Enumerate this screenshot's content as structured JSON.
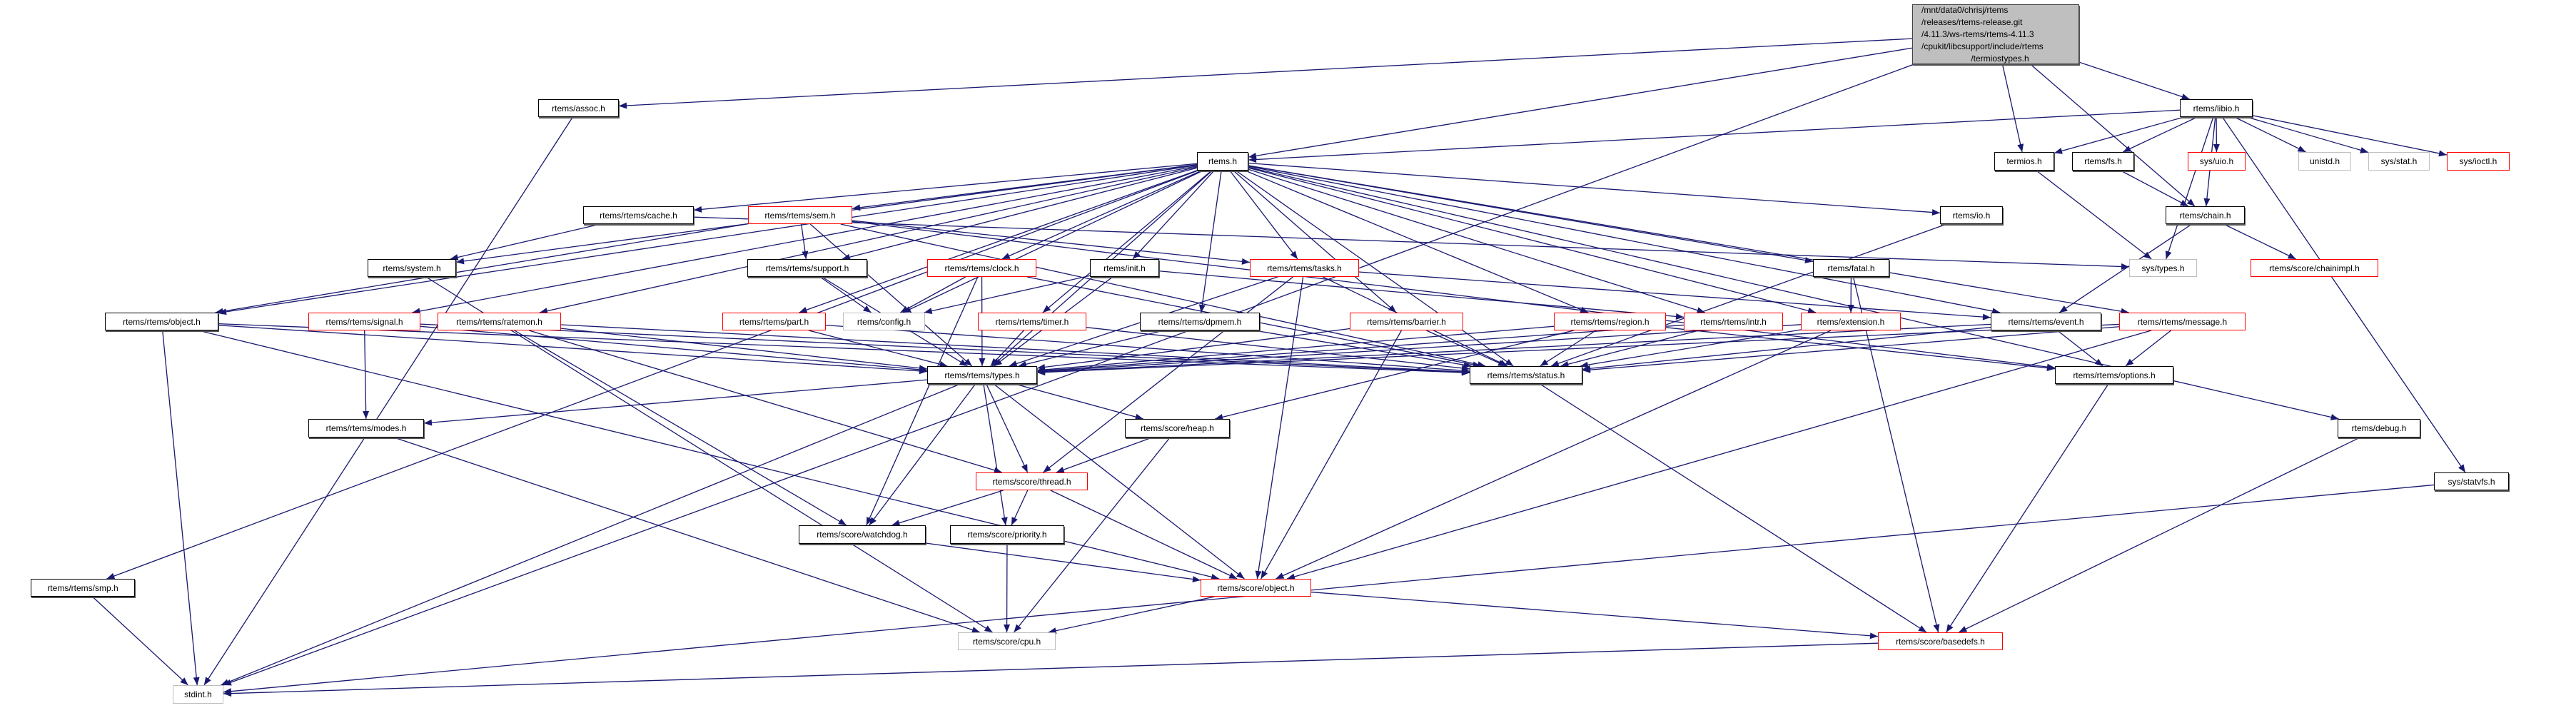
{
  "graph": {
    "edge_color": "#191970",
    "border_colors": {
      "normal": "#000000",
      "truncated": "#ff0000",
      "external": "#bfbfbf",
      "main_fill": "#bfbfbf"
    },
    "main": {
      "id": "main",
      "label_lines": [
        "/mnt/data0/chrisj/rtems",
        "/releases/rtems-release.git",
        "/4.11.3/ws-rtems/rtems-4.11.3",
        "/cpukit/libcsupport/include/rtems",
        "/termiostypes.h"
      ]
    },
    "nodes": [
      {
        "id": "assoc",
        "label": "rtems/assoc.h",
        "kind": "normal"
      },
      {
        "id": "libio",
        "label": "rtems/libio.h",
        "kind": "normal"
      },
      {
        "id": "rtems",
        "label": "rtems.h",
        "kind": "normal"
      },
      {
        "id": "termios",
        "label": "termios.h",
        "kind": "normal"
      },
      {
        "id": "fs",
        "label": "rtems/fs.h",
        "kind": "normal"
      },
      {
        "id": "uio",
        "label": "sys/uio.h",
        "kind": "truncated"
      },
      {
        "id": "unistd",
        "label": "unistd.h",
        "kind": "external"
      },
      {
        "id": "stat",
        "label": "sys/stat.h",
        "kind": "external"
      },
      {
        "id": "ioctl",
        "label": "sys/ioctl.h",
        "kind": "truncated"
      },
      {
        "id": "cache",
        "label": "rtems/rtems/cache.h",
        "kind": "normal"
      },
      {
        "id": "sem",
        "label": "rtems/rtems/sem.h",
        "kind": "truncated"
      },
      {
        "id": "io",
        "label": "rtems/io.h",
        "kind": "normal"
      },
      {
        "id": "chain",
        "label": "rtems/chain.h",
        "kind": "normal"
      },
      {
        "id": "system",
        "label": "rtems/system.h",
        "kind": "normal"
      },
      {
        "id": "support",
        "label": "rtems/rtems/support.h",
        "kind": "normal"
      },
      {
        "id": "clock",
        "label": "rtems/rtems/clock.h",
        "kind": "truncated"
      },
      {
        "id": "init",
        "label": "rtems/init.h",
        "kind": "normal"
      },
      {
        "id": "tasks",
        "label": "rtems/rtems/tasks.h",
        "kind": "truncated"
      },
      {
        "id": "fatal",
        "label": "rtems/fatal.h",
        "kind": "normal"
      },
      {
        "id": "systypes",
        "label": "sys/types.h",
        "kind": "external"
      },
      {
        "id": "chainimpl",
        "label": "rtems/score/chainimpl.h",
        "kind": "truncated"
      },
      {
        "id": "robject",
        "label": "rtems/rtems/object.h",
        "kind": "normal"
      },
      {
        "id": "signal",
        "label": "rtems/rtems/signal.h",
        "kind": "truncated"
      },
      {
        "id": "ratemon",
        "label": "rtems/rtems/ratemon.h",
        "kind": "truncated"
      },
      {
        "id": "part",
        "label": "rtems/rtems/part.h",
        "kind": "truncated"
      },
      {
        "id": "config",
        "label": "rtems/config.h",
        "kind": "external"
      },
      {
        "id": "timer",
        "label": "rtems/rtems/timer.h",
        "kind": "truncated"
      },
      {
        "id": "dpmem",
        "label": "rtems/rtems/dpmem.h",
        "kind": "normal"
      },
      {
        "id": "barrier",
        "label": "rtems/rtems/barrier.h",
        "kind": "truncated"
      },
      {
        "id": "region",
        "label": "rtems/rtems/region.h",
        "kind": "truncated"
      },
      {
        "id": "intr",
        "label": "rtems/rtems/intr.h",
        "kind": "truncated"
      },
      {
        "id": "extension",
        "label": "rtems/extension.h",
        "kind": "truncated"
      },
      {
        "id": "event",
        "label": "rtems/rtems/event.h",
        "kind": "normal"
      },
      {
        "id": "message",
        "label": "rtems/rtems/message.h",
        "kind": "truncated"
      },
      {
        "id": "types",
        "label": "rtems/rtems/types.h",
        "kind": "normal"
      },
      {
        "id": "status",
        "label": "rtems/rtems/status.h",
        "kind": "normal"
      },
      {
        "id": "options",
        "label": "rtems/rtems/options.h",
        "kind": "normal"
      },
      {
        "id": "modes",
        "label": "rtems/rtems/modes.h",
        "kind": "normal"
      },
      {
        "id": "heap",
        "label": "rtems/score/heap.h",
        "kind": "normal"
      },
      {
        "id": "debug",
        "label": "rtems/debug.h",
        "kind": "normal"
      },
      {
        "id": "thread",
        "label": "rtems/score/thread.h",
        "kind": "truncated"
      },
      {
        "id": "statvfs",
        "label": "sys/statvfs.h",
        "kind": "normal"
      },
      {
        "id": "watchdog",
        "label": "rtems/score/watchdog.h",
        "kind": "normal"
      },
      {
        "id": "priority",
        "label": "rtems/score/priority.h",
        "kind": "normal"
      },
      {
        "id": "smp",
        "label": "rtems/rtems/smp.h",
        "kind": "normal"
      },
      {
        "id": "sobject",
        "label": "rtems/score/object.h",
        "kind": "truncated"
      },
      {
        "id": "cpu",
        "label": "rtems/score/cpu.h",
        "kind": "external"
      },
      {
        "id": "basedefs",
        "label": "rtems/score/basedefs.h",
        "kind": "truncated"
      },
      {
        "id": "stdint",
        "label": "stdint.h",
        "kind": "external"
      }
    ],
    "edges": [
      [
        "main",
        "assoc"
      ],
      [
        "main",
        "rtems"
      ],
      [
        "main",
        "termios"
      ],
      [
        "main",
        "chain"
      ],
      [
        "main",
        "libio"
      ],
      [
        "main",
        "stdint"
      ],
      [
        "assoc",
        "stdint"
      ],
      [
        "libio",
        "rtems"
      ],
      [
        "libio",
        "termios"
      ],
      [
        "libio",
        "fs"
      ],
      [
        "libio",
        "chain"
      ],
      [
        "libio",
        "uio"
      ],
      [
        "libio",
        "unistd"
      ],
      [
        "libio",
        "stat"
      ],
      [
        "libio",
        "ioctl"
      ],
      [
        "libio",
        "systypes"
      ],
      [
        "libio",
        "statvfs"
      ],
      [
        "termios",
        "systypes"
      ],
      [
        "fs",
        "chain"
      ],
      [
        "chain",
        "chainimpl"
      ],
      [
        "chain",
        "event"
      ],
      [
        "rtems",
        "system"
      ],
      [
        "rtems",
        "cache"
      ],
      [
        "rtems",
        "sem"
      ],
      [
        "rtems",
        "support"
      ],
      [
        "rtems",
        "clock"
      ],
      [
        "rtems",
        "init"
      ],
      [
        "rtems",
        "tasks"
      ],
      [
        "rtems",
        "io"
      ],
      [
        "rtems",
        "fatal"
      ],
      [
        "rtems",
        "config"
      ],
      [
        "rtems",
        "debug"
      ],
      [
        "rtems",
        "robject"
      ],
      [
        "rtems",
        "signal"
      ],
      [
        "rtems",
        "ratemon"
      ],
      [
        "rtems",
        "part"
      ],
      [
        "rtems",
        "timer"
      ],
      [
        "rtems",
        "dpmem"
      ],
      [
        "rtems",
        "barrier"
      ],
      [
        "rtems",
        "region"
      ],
      [
        "rtems",
        "intr"
      ],
      [
        "rtems",
        "extension"
      ],
      [
        "rtems",
        "event"
      ],
      [
        "rtems",
        "message"
      ],
      [
        "rtems",
        "types"
      ],
      [
        "rtems",
        "status"
      ],
      [
        "rtems",
        "smp"
      ],
      [
        "cache",
        "system"
      ],
      [
        "cache",
        "systypes"
      ],
      [
        "sem",
        "support"
      ],
      [
        "sem",
        "tasks"
      ],
      [
        "sem",
        "robject"
      ],
      [
        "sem",
        "types"
      ],
      [
        "sem",
        "status"
      ],
      [
        "sem",
        "options"
      ],
      [
        "system",
        "cpu"
      ],
      [
        "support",
        "config"
      ],
      [
        "support",
        "types"
      ],
      [
        "clock",
        "config"
      ],
      [
        "clock",
        "types"
      ],
      [
        "clock",
        "status"
      ],
      [
        "clock",
        "watchdog"
      ],
      [
        "init",
        "config"
      ],
      [
        "init",
        "types"
      ],
      [
        "init",
        "intr"
      ],
      [
        "tasks",
        "types"
      ],
      [
        "tasks",
        "status"
      ],
      [
        "tasks",
        "sobject"
      ],
      [
        "tasks",
        "thread"
      ],
      [
        "tasks",
        "event"
      ],
      [
        "fatal",
        "extension"
      ],
      [
        "fatal",
        "basedefs"
      ],
      [
        "io",
        "status"
      ],
      [
        "robject",
        "types"
      ],
      [
        "robject",
        "status"
      ],
      [
        "robject",
        "stdint"
      ],
      [
        "robject",
        "sobject"
      ],
      [
        "signal",
        "modes"
      ],
      [
        "signal",
        "types"
      ],
      [
        "signal",
        "status"
      ],
      [
        "ratemon",
        "types"
      ],
      [
        "ratemon",
        "status"
      ],
      [
        "ratemon",
        "thread"
      ],
      [
        "ratemon",
        "watchdog"
      ],
      [
        "part",
        "types"
      ],
      [
        "part",
        "status"
      ],
      [
        "timer",
        "types"
      ],
      [
        "timer",
        "status"
      ],
      [
        "dpmem",
        "types"
      ],
      [
        "dpmem",
        "status"
      ],
      [
        "barrier",
        "types"
      ],
      [
        "barrier",
        "status"
      ],
      [
        "barrier",
        "sobject"
      ],
      [
        "region",
        "types"
      ],
      [
        "region",
        "status"
      ],
      [
        "region",
        "options"
      ],
      [
        "region",
        "heap"
      ],
      [
        "intr",
        "types"
      ],
      [
        "intr",
        "status"
      ],
      [
        "extension",
        "types"
      ],
      [
        "extension",
        "status"
      ],
      [
        "extension",
        "sobject"
      ],
      [
        "event",
        "types"
      ],
      [
        "event",
        "status"
      ],
      [
        "event",
        "options"
      ],
      [
        "message",
        "types"
      ],
      [
        "message",
        "status"
      ],
      [
        "message",
        "options"
      ],
      [
        "message",
        "sobject"
      ],
      [
        "types",
        "modes"
      ],
      [
        "types",
        "heap"
      ],
      [
        "types",
        "thread"
      ],
      [
        "types",
        "watchdog"
      ],
      [
        "types",
        "priority"
      ],
      [
        "types",
        "sobject"
      ],
      [
        "types",
        "stdint"
      ],
      [
        "status",
        "basedefs"
      ],
      [
        "options",
        "basedefs"
      ],
      [
        "debug",
        "basedefs"
      ],
      [
        "heap",
        "thread"
      ],
      [
        "heap",
        "cpu"
      ],
      [
        "thread",
        "watchdog"
      ],
      [
        "thread",
        "priority"
      ],
      [
        "thread",
        "sobject"
      ],
      [
        "watchdog",
        "sobject"
      ],
      [
        "priority",
        "cpu"
      ],
      [
        "modes",
        "cpu"
      ],
      [
        "smp",
        "stdint"
      ],
      [
        "sobject",
        "cpu"
      ],
      [
        "sobject",
        "basedefs"
      ],
      [
        "basedefs",
        "stdint"
      ],
      [
        "statvfs",
        "stdint"
      ]
    ]
  }
}
